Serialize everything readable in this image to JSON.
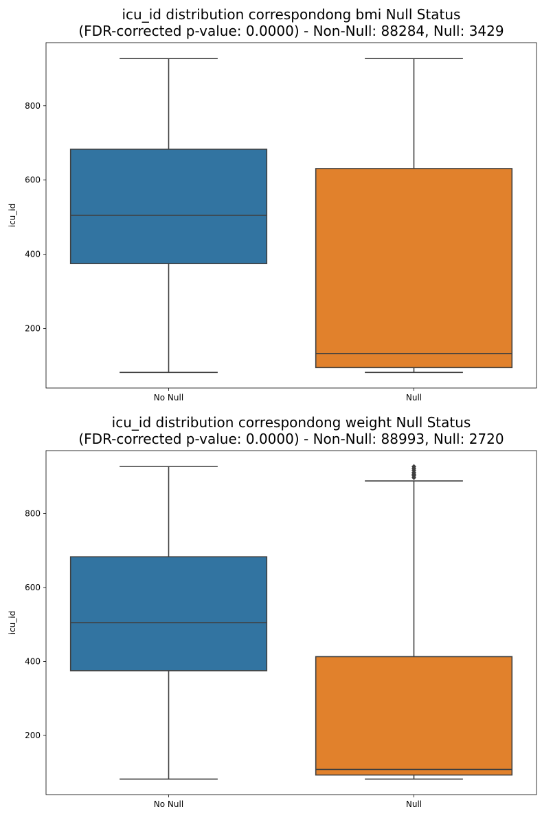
{
  "chart_data": [
    {
      "type": "box",
      "title_line1": "icu_id distribution correspondong bmi Null Status",
      "title_line2": "(FDR-corrected p-value: 0.0000) - Non-Null: 88284, Null: 3429",
      "xlabel": "",
      "ylabel": "icu_id",
      "ylim": [
        40,
        970
      ],
      "yticks": [
        200,
        400,
        600,
        800
      ],
      "categories": [
        "No Null",
        "Null"
      ],
      "boxes": [
        {
          "category": "No Null",
          "color": "#3274a1",
          "whisker_low": 82,
          "q1": 375,
          "median": 505,
          "q3": 683,
          "whisker_high": 927,
          "outliers": []
        },
        {
          "category": "Null",
          "color": "#e1812c",
          "whisker_low": 82,
          "q1": 95,
          "median": 133,
          "q3": 631,
          "whisker_high": 927,
          "outliers": []
        }
      ]
    },
    {
      "type": "box",
      "title_line1": "icu_id distribution correspondong weight Null Status",
      "title_line2": "(FDR-corrected p-value: 0.0000) - Non-Null: 88993, Null: 2720",
      "xlabel": "",
      "ylabel": "icu_id",
      "ylim": [
        40,
        970
      ],
      "yticks": [
        200,
        400,
        600,
        800
      ],
      "categories": [
        "No Null",
        "Null"
      ],
      "boxes": [
        {
          "category": "No Null",
          "color": "#3274a1",
          "whisker_low": 82,
          "q1": 375,
          "median": 505,
          "q3": 683,
          "whisker_high": 927,
          "outliers": []
        },
        {
          "category": "Null",
          "color": "#e1812c",
          "whisker_low": 82,
          "q1": 93,
          "median": 108,
          "q3": 413,
          "whisker_high": 888,
          "outliers": [
            897,
            902,
            906,
            911,
            917,
            922,
            927
          ]
        }
      ]
    }
  ]
}
